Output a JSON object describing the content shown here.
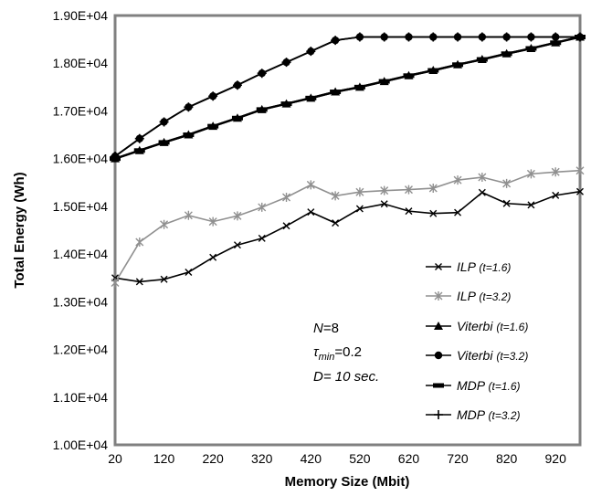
{
  "chart_data": {
    "type": "line",
    "xlabel": "Memory Size (Mbit)",
    "ylabel": "Total Energy (Wh)",
    "xlim": [
      20,
      970
    ],
    "ylim": [
      10000,
      19000
    ],
    "x_ticks": [
      "20",
      "120",
      "220",
      "320",
      "420",
      "520",
      "620",
      "720",
      "820",
      "920"
    ],
    "y_ticks": [
      "1.00E+04",
      "1.10E+04",
      "1.20E+04",
      "1.30E+04",
      "1.40E+04",
      "1.50E+04",
      "1.60E+04",
      "1.70E+04",
      "1.80E+04",
      "1.90E+04"
    ],
    "grid": false,
    "legend_position": "lower-right",
    "x": [
      20,
      70,
      120,
      170,
      220,
      270,
      320,
      370,
      420,
      470,
      520,
      570,
      620,
      670,
      720,
      770,
      820,
      870,
      920,
      970
    ],
    "series": [
      {
        "name": "ILP",
        "param": "t=1.6",
        "color": "#000000",
        "marker": "x",
        "values": [
          13500,
          13420,
          13470,
          13620,
          13930,
          14190,
          14330,
          14590,
          14880,
          14650,
          14950,
          15050,
          14900,
          14850,
          14870,
          15290,
          15060,
          15030,
          15230,
          15310
        ]
      },
      {
        "name": "ILP",
        "param": "t=3.2",
        "color": "#909090",
        "marker": "asterisk",
        "values": [
          13400,
          14250,
          14620,
          14810,
          14680,
          14800,
          14980,
          15190,
          15450,
          15220,
          15300,
          15330,
          15350,
          15380,
          15550,
          15610,
          15480,
          15680,
          15720,
          15750
        ]
      },
      {
        "name": "Viterbi",
        "param": "t=1.6",
        "color": "#000000",
        "marker": "triangle",
        "values": [
          16000,
          16170,
          16340,
          16500,
          16680,
          16850,
          17030,
          17150,
          17270,
          17400,
          17500,
          17620,
          17740,
          17850,
          17970,
          18080,
          18200,
          18310,
          18430,
          18550
        ]
      },
      {
        "name": "Viterbi",
        "param": "t=3.2",
        "color": "#000000",
        "marker": "circle",
        "values": [
          16050,
          16420,
          16770,
          17080,
          17310,
          17540,
          17790,
          18020,
          18250,
          18480,
          18550,
          18550,
          18550,
          18550,
          18550,
          18550,
          18550,
          18550,
          18550,
          18550
        ]
      },
      {
        "name": "MDP",
        "param": "t=1.6",
        "color": "#000000",
        "marker": "dash",
        "values": [
          16000,
          16170,
          16340,
          16500,
          16680,
          16850,
          17030,
          17150,
          17270,
          17400,
          17500,
          17620,
          17740,
          17850,
          17970,
          18080,
          18200,
          18310,
          18430,
          18550
        ]
      },
      {
        "name": "MDP",
        "param": "t=3.2",
        "color": "#000000",
        "marker": "plus",
        "values": [
          16050,
          16420,
          16770,
          17080,
          17310,
          17540,
          17790,
          18020,
          18250,
          18480,
          18550,
          18550,
          18550,
          18550,
          18550,
          18550,
          18550,
          18550,
          18550,
          18550
        ]
      }
    ],
    "annotation": {
      "n_label": "N",
      "n_value": "=8",
      "tau_symbol": "τ",
      "tau_sub": "min",
      "tau_value": "=0.2",
      "d_text": "D= 10 sec."
    }
  }
}
